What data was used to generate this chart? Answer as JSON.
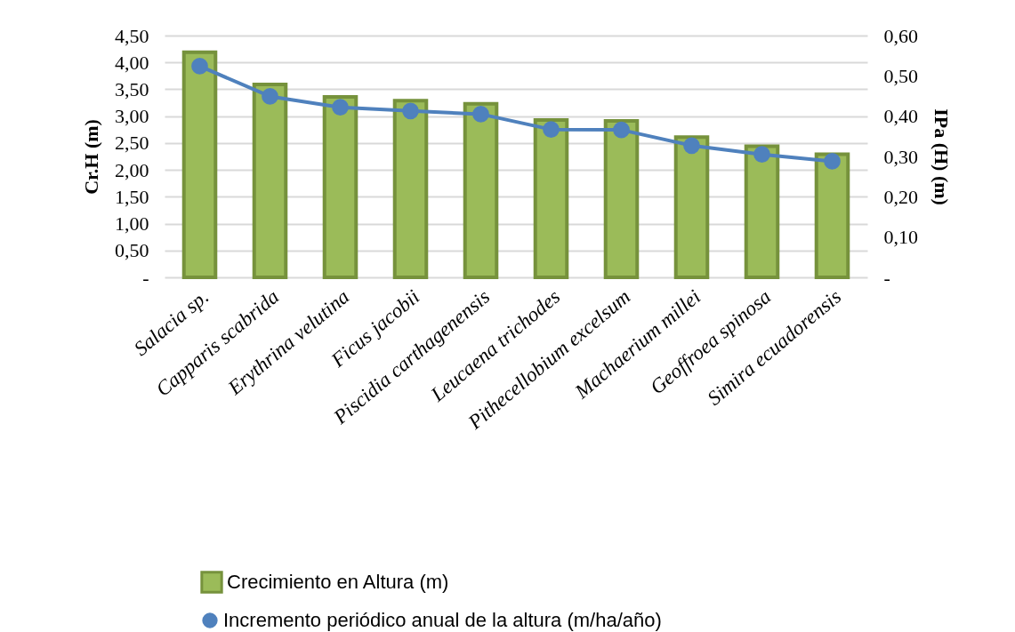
{
  "chart_data": {
    "type": "bar",
    "ylabel": "Cr.H (m)",
    "y2label": "IPa (H) (m)",
    "categories": [
      "Salacia sp.",
      "Capparis scabrida",
      "Erythrina velutina",
      "Ficus jacobii",
      "Piscidia carthagenensis",
      "Leucaena trichodes",
      "Pithecellobium excelsum",
      "Machaerium millei",
      "Geoffroea spinosa",
      "Simira ecuadorensis"
    ],
    "series": [
      {
        "name": "Crecimiento en Altura (m)",
        "color": "#9bbb59",
        "values": [
          4.19,
          3.59,
          3.36,
          3.29,
          3.23,
          2.93,
          2.91,
          2.61,
          2.44,
          2.29
        ]
      },
      {
        "name": "Incremento periódico anual de la altura (m/ha/año)",
        "type": "line",
        "axis": "y2",
        "color": "#4f81bd",
        "values": [
          0.524,
          0.449,
          0.422,
          0.413,
          0.405,
          0.367,
          0.366,
          0.327,
          0.305,
          0.288
        ]
      }
    ],
    "ylim": [
      0,
      4.5
    ],
    "yticks": [
      {
        "value": 0,
        "label": "-"
      },
      {
        "value": 0.5,
        "label": "0,50"
      },
      {
        "value": 1,
        "label": "1,00"
      },
      {
        "value": 1.5,
        "label": "1,50"
      },
      {
        "value": 2,
        "label": "2,00"
      },
      {
        "value": 2.5,
        "label": "2,50"
      },
      {
        "value": 3,
        "label": "3,00"
      },
      {
        "value": 3.5,
        "label": "3,50"
      },
      {
        "value": 4,
        "label": "4,00"
      },
      {
        "value": 4.5,
        "label": "4,50"
      }
    ],
    "y2lim": [
      0,
      0.6
    ],
    "y2ticks": [
      {
        "value": 0,
        "label": "-"
      },
      {
        "value": 0.1,
        "label": "0,10"
      },
      {
        "value": 0.2,
        "label": "0,20"
      },
      {
        "value": 0.3,
        "label": "0,30"
      },
      {
        "value": 0.4,
        "label": "0,40"
      },
      {
        "value": 0.5,
        "label": "0,50"
      },
      {
        "value": 0.6,
        "label": "0,60"
      }
    ],
    "grid": "y",
    "legend": "bottom",
    "marker": "circle"
  }
}
